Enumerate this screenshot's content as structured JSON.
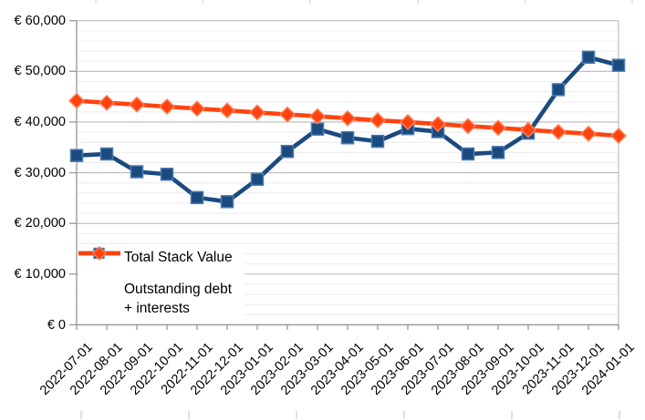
{
  "chart_data": {
    "type": "line",
    "title": "",
    "x_labels": [
      "2022-07-01",
      "2022-08-01",
      "2022-09-01",
      "2022-10-01",
      "2022-11-01",
      "2022-12-01",
      "2023-01-01",
      "2023-02-01",
      "2023-03-01",
      "2023-04-01",
      "2023-05-01",
      "2023-06-01",
      "2023-07-01",
      "2023-08-01",
      "2023-09-01",
      "2023-10-01",
      "2023-11-01",
      "2023-12-01",
      "2024-01-01"
    ],
    "series": [
      {
        "name": "Total Stack Value",
        "marker": "square",
        "color": "#1b4a7e",
        "marker_border": "#4a7ab2",
        "values": [
          33400,
          33700,
          30200,
          29700,
          25100,
          24300,
          28700,
          34200,
          38600,
          36900,
          36200,
          38700,
          38100,
          33700,
          34000,
          37800,
          46400,
          52800,
          51200
        ]
      },
      {
        "name": "Outstanding debt + interests",
        "marker": "diamond",
        "color": "#ff420e",
        "marker_border": "#ff7e55",
        "values": [
          44200,
          43800,
          43450,
          43050,
          42650,
          42300,
          41900,
          41500,
          41150,
          40750,
          40350,
          40000,
          39600,
          39200,
          38850,
          38450,
          38050,
          37700,
          37300
        ]
      }
    ],
    "y_axis": {
      "min": 0,
      "max": 60000,
      "major_step": 10000,
      "minor_step": 2000,
      "currency": "EUR",
      "tick_labels": [
        {
          "value": 60000,
          "label": "€ 60,000"
        },
        {
          "value": 50000,
          "label": "€ 50,000"
        },
        {
          "value": 40000,
          "label": "€ 40,000"
        },
        {
          "value": 30000,
          "label": "€ 30,000"
        },
        {
          "value": 20000,
          "label": "€ 20,000"
        },
        {
          "value": 10000,
          "label": "€ 10,000"
        },
        {
          "value": 0,
          "label": "€ 0"
        }
      ]
    },
    "legend": {
      "position": "inside-bottom-left",
      "items": [
        {
          "label": "Total Stack Value",
          "lines": [
            "Total Stack Value"
          ]
        },
        {
          "label": "Outstanding debt + interests",
          "lines": [
            "Outstanding debt",
            "+ interests"
          ]
        }
      ]
    },
    "grid": {
      "major": true,
      "minor": true
    },
    "colors": {
      "background": "#ffffff",
      "major_grid": "#b9b9b9",
      "minor_grid": "#ececec",
      "axis": "#9d9d9d",
      "text": "#000000",
      "series_blue": "#1b4a7e",
      "series_orange": "#ff420e"
    }
  }
}
